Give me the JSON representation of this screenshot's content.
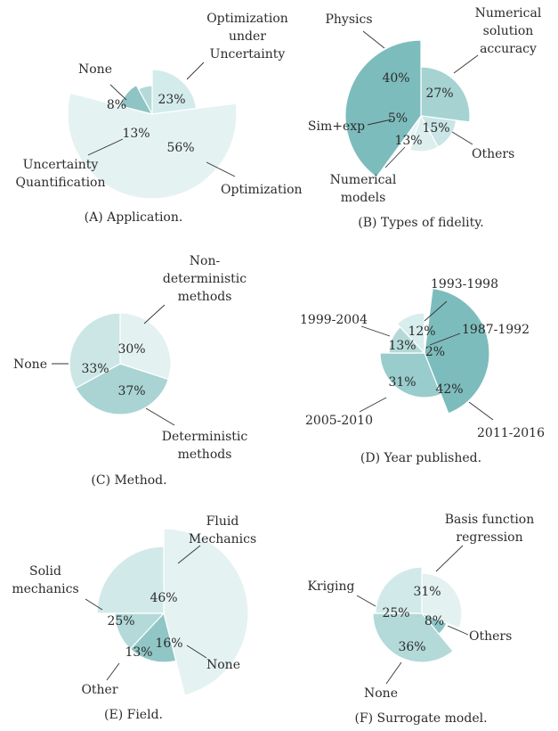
{
  "chart_data": [
    {
      "type": "pie",
      "caption": "(A) Application.",
      "categories": [
        "Optimization under Uncertainty",
        "Optimization",
        "Uncertainty Quantification",
        "None"
      ],
      "values": [
        23,
        56,
        13,
        8
      ],
      "value_labels": [
        "23%",
        "56%",
        "13%",
        "8%"
      ],
      "colors": [
        "#d4ebeb",
        "#e5f2f2",
        "#8fc4c4",
        "#b5d9d9"
      ]
    },
    {
      "type": "pie",
      "caption": "(B) Types of fidelity.",
      "categories": [
        "Numerical solution accuracy",
        "Others",
        "Numerical models",
        "Sim+exp",
        "Physics"
      ],
      "values": [
        27,
        15,
        13,
        5,
        40
      ],
      "value_labels": [
        "27%",
        "15%",
        "13%",
        "5%",
        "40%"
      ],
      "colors": [
        "#a6d2d2",
        "#c9e5e5",
        "#dceeee",
        "#e8f4f4",
        "#7dbcbc"
      ]
    },
    {
      "type": "pie",
      "caption": "(C) Method.",
      "categories": [
        "Non-deterministic methods",
        "Deterministic methods",
        "None"
      ],
      "values": [
        30,
        37,
        33
      ],
      "value_labels": [
        "30%",
        "37%",
        "33%"
      ],
      "colors": [
        "#e3f1f1",
        "#aad4d4",
        "#cce6e6"
      ]
    },
    {
      "type": "pie",
      "caption": "(D) Year published.",
      "categories": [
        "1987-1992",
        "2011-2016",
        "2005-2010",
        "1999-2004",
        "1993-1998"
      ],
      "values": [
        2,
        42,
        31,
        13,
        12
      ],
      "value_labels": [
        "2%",
        "42%",
        "31%",
        "13%",
        "12%"
      ],
      "colors": [
        "#ffffff",
        "#7dbcbc",
        "#99cccc",
        "#b5d9d9",
        "#d8eded"
      ]
    },
    {
      "type": "pie",
      "caption": "(E) Field.",
      "categories": [
        "Fluid Mechanics",
        "None",
        "Other",
        "Solid mechanics"
      ],
      "values": [
        46,
        16,
        13,
        25
      ],
      "value_labels": [
        "46%",
        "16%",
        "13%",
        "25%"
      ],
      "colors": [
        "#e5f2f2",
        "#90c6c6",
        "#b3d9d9",
        "#d2e9e9"
      ]
    },
    {
      "type": "pie",
      "caption": "(F) Surrogate model.",
      "categories": [
        "Basis function regression",
        "Others",
        "None",
        "Kriging"
      ],
      "values": [
        31,
        8,
        36,
        25
      ],
      "value_labels": [
        "31%",
        "8%",
        "36%",
        "25%"
      ],
      "colors": [
        "#e3f1f1",
        "#8fc4c4",
        "#b3d9d9",
        "#d2e9e9"
      ]
    }
  ]
}
